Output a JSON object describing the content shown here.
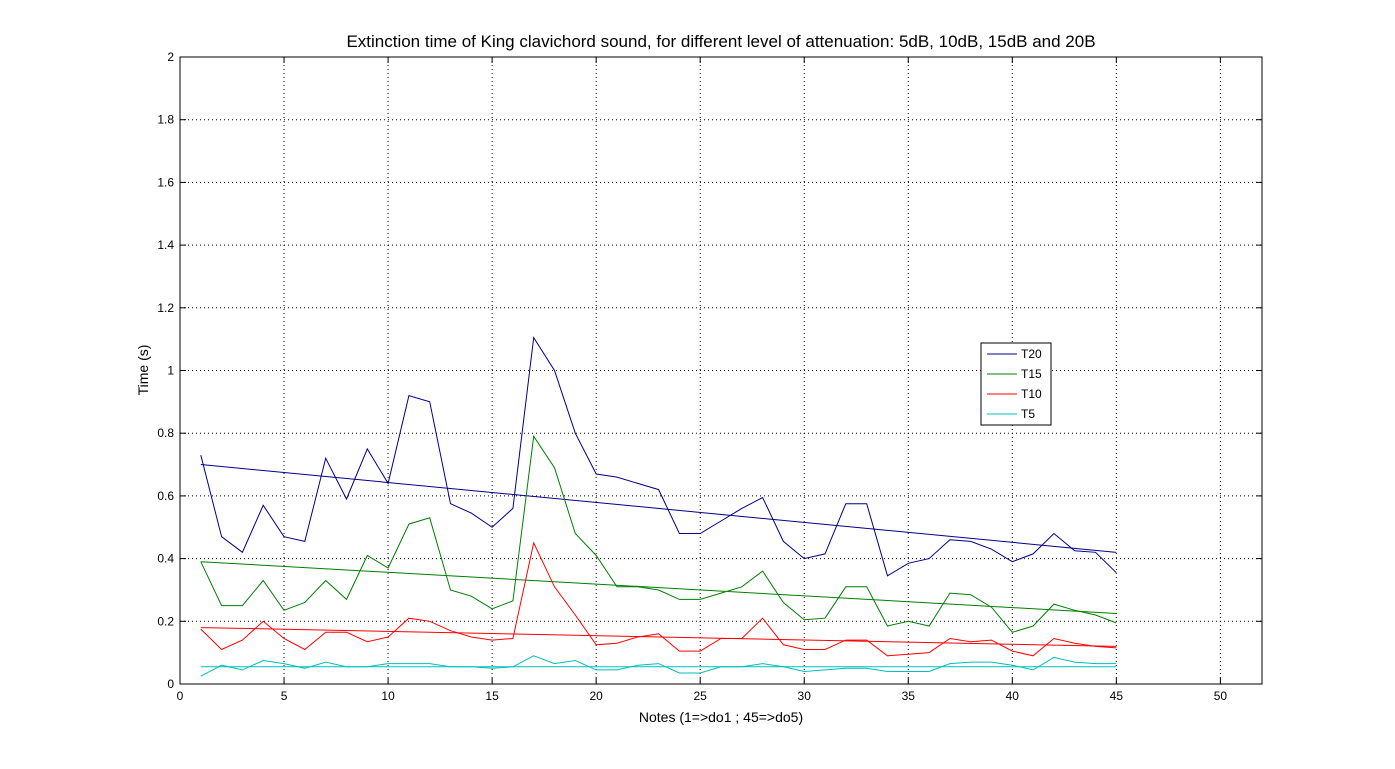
{
  "chart_data": {
    "type": "line",
    "title": "Extinction time of King clavichord sound, for different level of attenuation: 5dB, 10dB, 15dB and 20B",
    "xlabel": "Notes (1=>do1 ; 45=>do5)",
    "ylabel": "Time (s)",
    "xlim": [
      0,
      52
    ],
    "ylim": [
      0,
      2
    ],
    "xticks": [
      0,
      5,
      10,
      15,
      20,
      25,
      30,
      35,
      40,
      45,
      50
    ],
    "yticks": [
      0,
      0.2,
      0.4,
      0.6,
      0.8,
      1,
      1.2,
      1.4,
      1.6,
      1.8,
      2
    ],
    "grid": true,
    "legend_position": "right",
    "x": [
      1,
      2,
      3,
      4,
      5,
      6,
      7,
      8,
      9,
      10,
      11,
      12,
      13,
      14,
      15,
      16,
      17,
      18,
      19,
      20,
      21,
      22,
      23,
      24,
      25,
      26,
      27,
      28,
      29,
      30,
      31,
      32,
      33,
      34,
      35,
      36,
      37,
      38,
      39,
      40,
      41,
      42,
      43,
      44,
      45
    ],
    "series": [
      {
        "name": "T20",
        "color": "#00008b",
        "values": [
          0.73,
          0.47,
          0.42,
          0.57,
          0.47,
          0.455,
          0.72,
          0.59,
          0.75,
          0.64,
          0.92,
          0.9,
          0.575,
          0.545,
          0.5,
          0.56,
          1.105,
          1.0,
          0.8,
          0.67,
          0.66,
          0.64,
          0.62,
          0.48,
          0.48,
          0.52,
          0.56,
          0.595,
          0.455,
          0.4,
          0.415,
          0.575,
          0.575,
          0.345,
          0.385,
          0.4,
          0.46,
          0.455,
          0.43,
          0.39,
          0.415,
          0.48,
          0.425,
          0.42,
          0.355
        ],
        "trend": [
          0.7,
          0.42
        ]
      },
      {
        "name": "T15",
        "color": "#007f00",
        "values": [
          0.39,
          0.25,
          0.25,
          0.33,
          0.235,
          0.26,
          0.33,
          0.27,
          0.41,
          0.37,
          0.51,
          0.53,
          0.3,
          0.28,
          0.24,
          0.265,
          0.79,
          0.69,
          0.48,
          0.41,
          0.31,
          0.31,
          0.3,
          0.27,
          0.27,
          0.29,
          0.31,
          0.36,
          0.26,
          0.205,
          0.21,
          0.31,
          0.31,
          0.185,
          0.2,
          0.185,
          0.29,
          0.285,
          0.245,
          0.165,
          0.185,
          0.255,
          0.235,
          0.22,
          0.195
        ],
        "trend": [
          0.39,
          0.225
        ]
      },
      {
        "name": "T10",
        "color": "#ff0000",
        "values": [
          0.175,
          0.11,
          0.14,
          0.2,
          0.145,
          0.11,
          0.165,
          0.165,
          0.135,
          0.15,
          0.21,
          0.2,
          0.17,
          0.15,
          0.14,
          0.145,
          0.45,
          0.31,
          0.22,
          0.125,
          0.13,
          0.15,
          0.16,
          0.105,
          0.105,
          0.145,
          0.145,
          0.21,
          0.125,
          0.11,
          0.11,
          0.14,
          0.14,
          0.09,
          0.095,
          0.1,
          0.145,
          0.135,
          0.14,
          0.105,
          0.09,
          0.145,
          0.13,
          0.12,
          0.115
        ],
        "trend": [
          0.18,
          0.12
        ]
      },
      {
        "name": "T5",
        "color": "#00bfbf",
        "values": [
          0.025,
          0.06,
          0.045,
          0.075,
          0.065,
          0.05,
          0.07,
          0.055,
          0.055,
          0.065,
          0.065,
          0.065,
          0.055,
          0.055,
          0.05,
          0.055,
          0.09,
          0.065,
          0.075,
          0.045,
          0.045,
          0.06,
          0.065,
          0.035,
          0.035,
          0.055,
          0.055,
          0.065,
          0.055,
          0.04,
          0.045,
          0.05,
          0.05,
          0.04,
          0.04,
          0.04,
          0.065,
          0.07,
          0.07,
          0.06,
          0.045,
          0.085,
          0.07,
          0.065,
          0.065
        ],
        "trend": [
          0.055,
          0.055
        ]
      }
    ]
  }
}
